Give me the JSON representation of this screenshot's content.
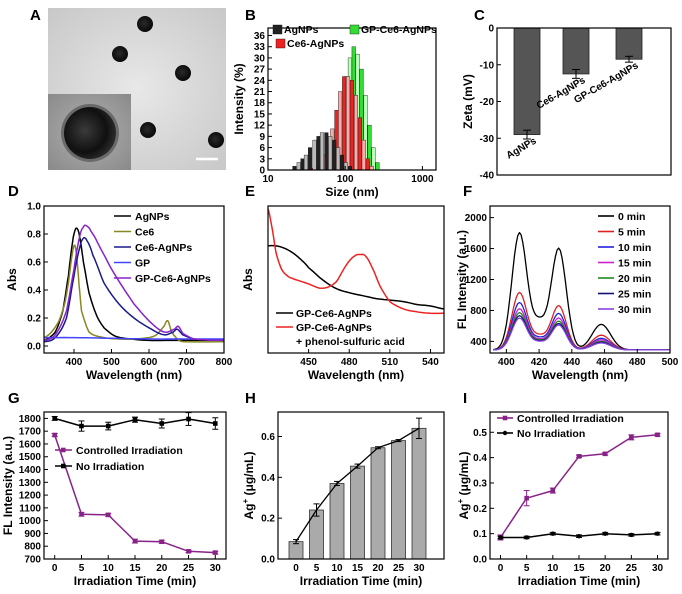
{
  "panels": {
    "A": {
      "label": "A"
    },
    "B": {
      "label": "B"
    },
    "C": {
      "label": "C"
    },
    "D": {
      "label": "D"
    },
    "E": {
      "label": "E"
    },
    "F": {
      "label": "F"
    },
    "G": {
      "label": "G"
    },
    "H": {
      "label": "H"
    },
    "I": {
      "label": "I"
    }
  },
  "chart_data": [
    {
      "id": "B",
      "type": "bar",
      "xlabel": "Size (nm)",
      "ylabel": "Intensity (%)",
      "xscale": "log",
      "xlim": [
        10,
        1500
      ],
      "ylim": [
        0,
        38
      ],
      "xticks": [
        10,
        100,
        1000
      ],
      "xtick_labels": [
        "10",
        "100",
        "1000"
      ],
      "yticks": [
        0,
        3,
        6,
        9,
        12,
        15,
        18,
        21,
        24,
        27,
        30,
        33,
        36
      ],
      "legend_position": "top",
      "series": [
        {
          "name": "GP-Ce6-AgNPs",
          "color": "#33dd33",
          "x": [
            40,
            45,
            50,
            57,
            64,
            72,
            81,
            91,
            102,
            115,
            129,
            145,
            163,
            183,
            206,
            232,
            261
          ],
          "values": [
            0.5,
            1,
            2,
            4,
            7,
            10,
            14,
            19,
            25,
            30,
            33,
            31,
            27,
            20,
            12,
            6,
            2
          ]
        },
        {
          "name": "Ce6-AgNPs",
          "color": "#ee2222",
          "x": [
            38,
            43,
            48,
            54,
            61,
            68,
            77,
            86,
            97,
            109,
            122,
            138,
            155,
            174,
            196,
            220
          ],
          "values": [
            0.5,
            1,
            2,
            4,
            7,
            11,
            16,
            21,
            25,
            25,
            24,
            20,
            14,
            8,
            3,
            1
          ]
        },
        {
          "name": "AgNPs",
          "color": "#222222",
          "x": [
            22,
            25,
            28,
            31,
            35,
            40,
            45,
            50,
            57,
            64,
            72,
            81,
            91,
            102,
            115
          ],
          "values": [
            1,
            2,
            3,
            4,
            6,
            8,
            9,
            10,
            10,
            9,
            8,
            6,
            4,
            2,
            1
          ]
        }
      ]
    },
    {
      "id": "C",
      "type": "bar",
      "ylabel": "Zeta (mV)",
      "ylim": [
        -40,
        0
      ],
      "yticks": [
        0,
        -10,
        -20,
        -30,
        -40
      ],
      "categories": [
        "AgNPs",
        "Ce6-AgNPs",
        "GP-Ce6-AgNPs"
      ],
      "values": [
        -29,
        -12.5,
        -8.5
      ],
      "errors": [
        1.2,
        1.2,
        0.8
      ],
      "color": "#555555"
    },
    {
      "id": "D",
      "type": "line",
      "xlabel": "Wavelength (nm)",
      "ylabel": "Abs",
      "xlim": [
        320,
        800
      ],
      "ylim": [
        -0.05,
        1.0
      ],
      "xticks": [
        400,
        500,
        600,
        700,
        800
      ],
      "yticks": [
        0.0,
        0.2,
        0.4,
        0.6,
        0.8,
        1.0
      ],
      "legend_position": "top-right",
      "series": [
        {
          "name": "AgNPs",
          "color": "#000000",
          "x": [
            320,
            350,
            370,
            385,
            395,
            402,
            408,
            415,
            425,
            440,
            460,
            480,
            510,
            550,
            600,
            650,
            700,
            800
          ],
          "y": [
            0.04,
            0.1,
            0.25,
            0.5,
            0.72,
            0.82,
            0.84,
            0.78,
            0.6,
            0.38,
            0.22,
            0.13,
            0.07,
            0.05,
            0.04,
            0.04,
            0.04,
            0.04
          ]
        },
        {
          "name": "Ce6",
          "color": "#888822",
          "x": [
            320,
            340,
            360,
            375,
            385,
            395,
            402,
            408,
            413,
            420,
            440,
            480,
            520,
            560,
            600,
            620,
            640,
            650,
            660,
            680,
            700,
            800
          ],
          "y": [
            0.06,
            0.1,
            0.18,
            0.3,
            0.45,
            0.65,
            0.72,
            0.62,
            0.45,
            0.25,
            0.1,
            0.06,
            0.05,
            0.05,
            0.06,
            0.08,
            0.14,
            0.18,
            0.1,
            0.04,
            0.03,
            0.03
          ]
        },
        {
          "name": "Ce6-AgNPs",
          "color": "#1a1a8a",
          "x": [
            320,
            350,
            380,
            400,
            415,
            425,
            435,
            450,
            480,
            520,
            560,
            600,
            640,
            665,
            675,
            690,
            720,
            800
          ],
          "y": [
            0.03,
            0.06,
            0.2,
            0.5,
            0.7,
            0.77,
            0.75,
            0.65,
            0.45,
            0.3,
            0.2,
            0.13,
            0.08,
            0.1,
            0.12,
            0.08,
            0.05,
            0.04
          ]
        },
        {
          "name": "GP",
          "color": "#4444ff",
          "x": [
            320,
            400,
            500,
            600,
            700,
            800
          ],
          "y": [
            0.06,
            0.06,
            0.055,
            0.05,
            0.05,
            0.05
          ]
        },
        {
          "name": "GP-Ce6-AgNPs",
          "color": "#8822cc",
          "x": [
            320,
            350,
            380,
            400,
            415,
            425,
            432,
            445,
            470,
            500,
            530,
            560,
            600,
            640,
            668,
            678,
            690,
            720,
            800
          ],
          "y": [
            0.04,
            0.08,
            0.25,
            0.55,
            0.78,
            0.85,
            0.86,
            0.82,
            0.7,
            0.55,
            0.42,
            0.3,
            0.18,
            0.1,
            0.12,
            0.14,
            0.09,
            0.05,
            0.04
          ]
        }
      ]
    },
    {
      "id": "E",
      "type": "line",
      "xlabel": "Wavelength (nm)",
      "ylabel": "Abs",
      "xlim": [
        420,
        550
      ],
      "ylim": [
        0,
        1
      ],
      "xticks": [
        450,
        480,
        510,
        540
      ],
      "legend_position": "bottom-left",
      "series": [
        {
          "name": "GP-Ce6-AgNPs",
          "color": "#000000",
          "x": [
            420,
            425,
            430,
            435,
            440,
            445,
            450,
            460,
            470,
            480,
            490,
            500,
            510,
            520,
            530,
            540,
            550
          ],
          "y": [
            0.73,
            0.73,
            0.72,
            0.7,
            0.67,
            0.63,
            0.58,
            0.5,
            0.44,
            0.41,
            0.39,
            0.37,
            0.36,
            0.35,
            0.33,
            0.32,
            0.3
          ]
        },
        {
          "name": "GP-Ce6-AgNPs",
          "color": "#ee2222",
          "x": [
            420,
            423,
            426,
            430,
            435,
            440,
            450,
            460,
            470,
            478,
            484,
            488,
            492,
            497,
            503,
            510,
            520,
            530,
            540,
            550
          ],
          "y": [
            0.98,
            0.85,
            0.68,
            0.57,
            0.52,
            0.5,
            0.47,
            0.44,
            0.48,
            0.6,
            0.66,
            0.67,
            0.66,
            0.58,
            0.45,
            0.35,
            0.3,
            0.28,
            0.27,
            0.27
          ]
        }
      ],
      "annotation": "+ phenol-sulfuric acid"
    },
    {
      "id": "F",
      "type": "line",
      "xlabel": "Wavelength (nm)",
      "ylabel": "FL Intensity (a.u.)",
      "xlim": [
        390,
        500
      ],
      "ylim": [
        250,
        2150
      ],
      "xticks": [
        400,
        420,
        440,
        460,
        480,
        500
      ],
      "yticks": [
        400,
        800,
        1200,
        1600,
        2000
      ],
      "legend_position": "top-right",
      "series": [
        {
          "name": "0 min",
          "color": "#000000",
          "peaks": [
            1800,
            1600,
            620
          ]
        },
        {
          "name": "5 min",
          "color": "#dd2222",
          "peaks": [
            1030,
            860,
            480
          ]
        },
        {
          "name": "10 min",
          "color": "#2222dd",
          "peaks": [
            900,
            760,
            440
          ]
        },
        {
          "name": "15 min",
          "color": "#cc22cc",
          "peaks": [
            820,
            700,
            420
          ]
        },
        {
          "name": "20 min",
          "color": "#228822",
          "peaks": [
            770,
            660,
            400
          ]
        },
        {
          "name": "25 min",
          "color": "#111177",
          "peaks": [
            730,
            630,
            390
          ]
        },
        {
          "name": "30 min",
          "color": "#8844dd",
          "peaks": [
            700,
            610,
            380
          ]
        }
      ]
    },
    {
      "id": "G",
      "type": "line",
      "xlabel": "Irradiation Time (min)",
      "ylabel": "FL Intensity (a.u.)",
      "xlim": [
        -2,
        32
      ],
      "ylim": [
        700,
        1850
      ],
      "xticks": [
        0,
        5,
        10,
        15,
        20,
        25,
        30
      ],
      "yticks": [
        700,
        800,
        900,
        1000,
        1100,
        1200,
        1300,
        1400,
        1500,
        1600,
        1700,
        1800
      ],
      "legend_position": "center",
      "series": [
        {
          "name": "Controlled Irradiation",
          "color": "#882288",
          "x": [
            0,
            5,
            10,
            15,
            20,
            25,
            30
          ],
          "y": [
            1670,
            1050,
            1045,
            840,
            835,
            760,
            750
          ],
          "errors": [
            12,
            15,
            12,
            15,
            12,
            10,
            10
          ]
        },
        {
          "name": "No Irradiation",
          "color": "#000000",
          "x": [
            0,
            5,
            10,
            15,
            20,
            25,
            30
          ],
          "y": [
            1800,
            1740,
            1740,
            1790,
            1760,
            1795,
            1760
          ],
          "errors": [
            15,
            40,
            30,
            20,
            35,
            50,
            45
          ]
        }
      ]
    },
    {
      "id": "H",
      "type": "bar",
      "xlabel": "Irradiation Time (min)",
      "ylabel": "Ag",
      "ylabel_sup": "+",
      "ylabel_unit": " (μg/mL)",
      "ylim": [
        0,
        0.72
      ],
      "yticks": [
        0.0,
        0.2,
        0.4,
        0.6
      ],
      "categories": [
        "0",
        "5",
        "10",
        "15",
        "20",
        "25",
        "30"
      ],
      "values": [
        0.085,
        0.24,
        0.37,
        0.455,
        0.545,
        0.58,
        0.64
      ],
      "errors": [
        0.01,
        0.03,
        0.01,
        0.01,
        0.005,
        0.005,
        0.05
      ],
      "color": "#aaaaaa"
    },
    {
      "id": "I",
      "type": "line",
      "xlabel": "Irradiation Time (min)",
      "ylabel": "Ag",
      "ylabel_sup": "+",
      "ylabel_unit": " (μg/mL)",
      "xlim": [
        -2,
        32
      ],
      "ylim": [
        0,
        0.58
      ],
      "xticks": [
        0,
        5,
        10,
        15,
        20,
        25,
        30
      ],
      "yticks": [
        0.0,
        0.1,
        0.2,
        0.3,
        0.4,
        0.5
      ],
      "legend_position": "top-left",
      "series": [
        {
          "name": "Controlled Irradiation",
          "color": "#882288",
          "x": [
            0,
            5,
            10,
            15,
            20,
            25,
            30
          ],
          "y": [
            0.085,
            0.24,
            0.27,
            0.405,
            0.415,
            0.48,
            0.49
          ],
          "errors": [
            0.01,
            0.03,
            0.01,
            0.005,
            0.005,
            0.01,
            0.005
          ]
        },
        {
          "name": "No Irradiation",
          "color": "#000000",
          "x": [
            0,
            5,
            10,
            15,
            20,
            25,
            30
          ],
          "y": [
            0.085,
            0.085,
            0.1,
            0.09,
            0.1,
            0.095,
            0.1
          ],
          "errors": [
            0.005,
            0.005,
            0.005,
            0.005,
            0.005,
            0.005,
            0.005
          ]
        }
      ]
    }
  ]
}
